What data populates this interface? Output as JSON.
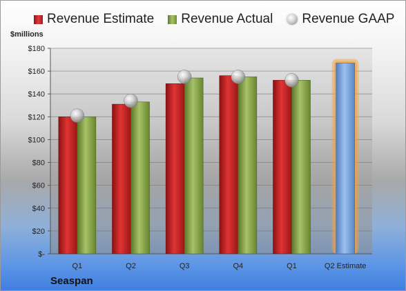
{
  "legend": {
    "estimate": "Revenue Estimate",
    "actual": "Revenue Actual",
    "gaap": "Revenue GAAP"
  },
  "unit_label": "$millions",
  "company": "Seaspan",
  "colors": {
    "estimate": "#c62828",
    "actual": "#8fac54",
    "gaap": "#b0b0b0",
    "forecast": "#6f9bd4",
    "forecast_glow": "#f5a23c"
  },
  "chart_data": {
    "type": "bar",
    "categories": [
      "Q1",
      "Q2",
      "Q3",
      "Q4",
      "Q1",
      "Q2 Estimate"
    ],
    "series": [
      {
        "name": "Revenue Estimate",
        "values": [
          120,
          131,
          149,
          156,
          152,
          167
        ]
      },
      {
        "name": "Revenue Actual",
        "values": [
          120,
          133,
          154,
          155,
          152,
          null
        ]
      },
      {
        "name": "Revenue GAAP",
        "values": [
          121,
          134,
          155,
          155,
          152,
          null
        ]
      }
    ],
    "yticks": [
      "$-",
      "$20",
      "$40",
      "$60",
      "$80",
      "$100",
      "$120",
      "$140",
      "$160",
      "$180"
    ],
    "ylim": [
      0,
      180
    ],
    "ylabel": "$millions",
    "grid": true,
    "legend": "top"
  }
}
